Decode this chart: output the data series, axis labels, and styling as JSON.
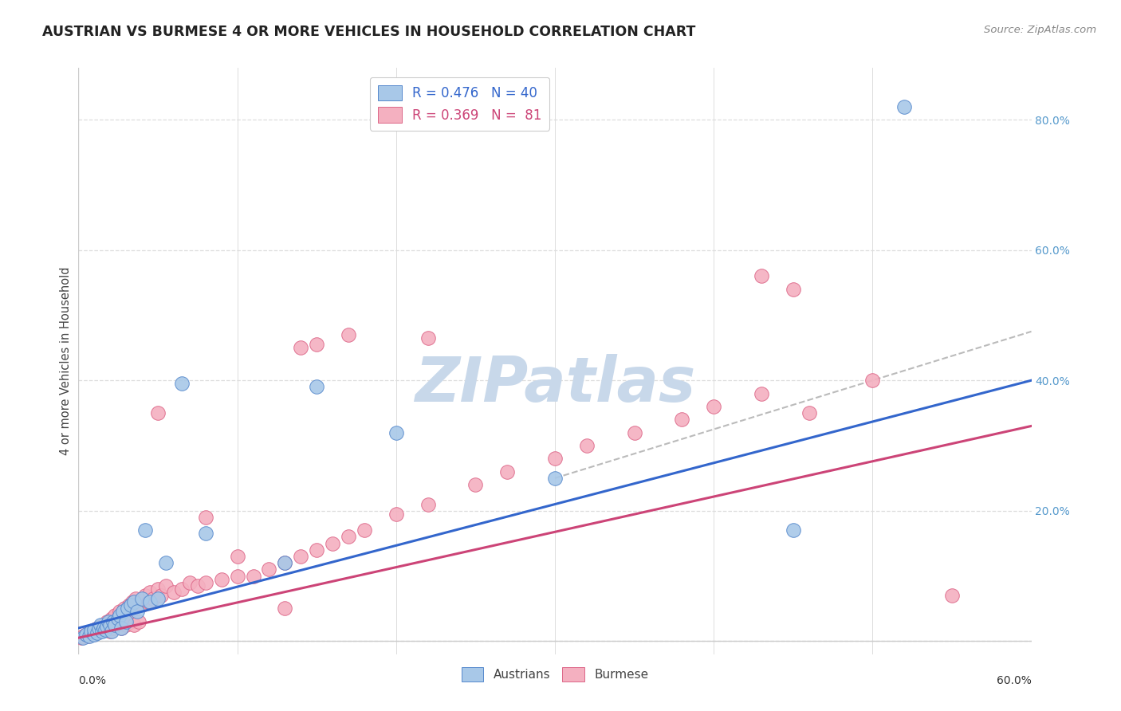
{
  "title": "AUSTRIAN VS BURMESE 4 OR MORE VEHICLES IN HOUSEHOLD CORRELATION CHART",
  "source": "Source: ZipAtlas.com",
  "ylabel": "4 or more Vehicles in Household",
  "xlim": [
    0.0,
    0.6
  ],
  "ylim": [
    -0.02,
    0.88
  ],
  "blue_color": "#a8c8e8",
  "pink_color": "#f4b0c0",
  "blue_edge_color": "#5588cc",
  "pink_edge_color": "#dd6688",
  "blue_line_color": "#3366cc",
  "pink_line_color": "#cc4477",
  "dashed_line_color": "#bbbbbb",
  "watermark_color": "#c8d8ea",
  "background_color": "#ffffff",
  "grid_color": "#dddddd",
  "ytick_color": "#5599cc",
  "legend_blue_label": "R = 0.476   N = 40",
  "legend_pink_label": "R = 0.369   N =  81",
  "blue_line_x0": 0.0,
  "blue_line_y0": 0.02,
  "blue_line_x1": 0.6,
  "blue_line_y1": 0.4,
  "pink_line_x0": 0.0,
  "pink_line_y0": 0.005,
  "pink_line_x1": 0.6,
  "pink_line_y1": 0.33,
  "dash_line_x0": 0.3,
  "dash_line_y0": 0.25,
  "dash_line_x1": 0.6,
  "dash_line_y1": 0.475,
  "austrians_x": [
    0.003,
    0.005,
    0.007,
    0.008,
    0.01,
    0.01,
    0.012,
    0.013,
    0.014,
    0.015,
    0.016,
    0.017,
    0.018,
    0.019,
    0.02,
    0.021,
    0.022,
    0.023,
    0.025,
    0.026,
    0.027,
    0.028,
    0.03,
    0.031,
    0.033,
    0.035,
    0.037,
    0.04,
    0.042,
    0.045,
    0.05,
    0.055,
    0.065,
    0.08,
    0.13,
    0.15,
    0.2,
    0.3,
    0.45,
    0.52
  ],
  "austrians_y": [
    0.005,
    0.01,
    0.008,
    0.015,
    0.01,
    0.018,
    0.012,
    0.02,
    0.025,
    0.015,
    0.02,
    0.018,
    0.022,
    0.03,
    0.025,
    0.015,
    0.03,
    0.025,
    0.035,
    0.04,
    0.02,
    0.045,
    0.03,
    0.05,
    0.055,
    0.06,
    0.045,
    0.065,
    0.17,
    0.06,
    0.065,
    0.12,
    0.395,
    0.165,
    0.12,
    0.39,
    0.32,
    0.25,
    0.17,
    0.82
  ],
  "burmese_x": [
    0.002,
    0.003,
    0.005,
    0.006,
    0.007,
    0.008,
    0.009,
    0.01,
    0.011,
    0.012,
    0.013,
    0.014,
    0.015,
    0.016,
    0.017,
    0.018,
    0.019,
    0.02,
    0.021,
    0.022,
    0.023,
    0.024,
    0.025,
    0.026,
    0.027,
    0.028,
    0.029,
    0.03,
    0.032,
    0.033,
    0.034,
    0.035,
    0.036,
    0.038,
    0.04,
    0.041,
    0.042,
    0.044,
    0.045,
    0.047,
    0.05,
    0.052,
    0.055,
    0.06,
    0.065,
    0.07,
    0.075,
    0.08,
    0.09,
    0.1,
    0.11,
    0.12,
    0.13,
    0.14,
    0.15,
    0.16,
    0.17,
    0.18,
    0.2,
    0.22,
    0.25,
    0.27,
    0.3,
    0.32,
    0.35,
    0.38,
    0.4,
    0.43,
    0.46,
    0.5,
    0.05,
    0.08,
    0.1,
    0.13,
    0.14,
    0.15,
    0.17,
    0.22,
    0.43,
    0.45,
    0.55
  ],
  "burmese_y": [
    0.005,
    0.008,
    0.01,
    0.008,
    0.012,
    0.015,
    0.01,
    0.018,
    0.012,
    0.02,
    0.015,
    0.022,
    0.018,
    0.025,
    0.02,
    0.03,
    0.025,
    0.015,
    0.035,
    0.02,
    0.04,
    0.025,
    0.03,
    0.045,
    0.02,
    0.035,
    0.05,
    0.025,
    0.055,
    0.03,
    0.06,
    0.025,
    0.065,
    0.03,
    0.055,
    0.065,
    0.07,
    0.06,
    0.075,
    0.065,
    0.08,
    0.07,
    0.085,
    0.075,
    0.08,
    0.09,
    0.085,
    0.09,
    0.095,
    0.1,
    0.1,
    0.11,
    0.12,
    0.13,
    0.14,
    0.15,
    0.16,
    0.17,
    0.195,
    0.21,
    0.24,
    0.26,
    0.28,
    0.3,
    0.32,
    0.34,
    0.36,
    0.38,
    0.35,
    0.4,
    0.35,
    0.19,
    0.13,
    0.05,
    0.45,
    0.455,
    0.47,
    0.465,
    0.56,
    0.54,
    0.07
  ]
}
